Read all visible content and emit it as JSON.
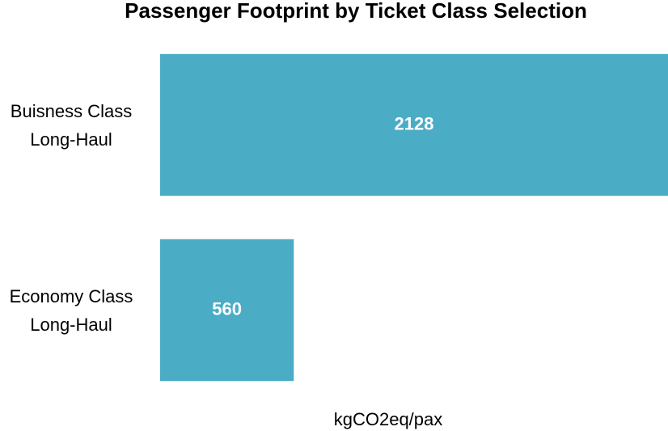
{
  "chart_data": {
    "type": "bar",
    "orientation": "horizontal",
    "title": "Passenger Footprint by Ticket Class Selection",
    "x_label": "kgCO2eq/pax",
    "categories": [
      "Buisness Class Long-Haul",
      "Economy Class Long-Haul"
    ],
    "values": [
      2128,
      560
    ],
    "color": "#4bacc6",
    "xlim": [
      0,
      2128
    ],
    "grid": false
  }
}
